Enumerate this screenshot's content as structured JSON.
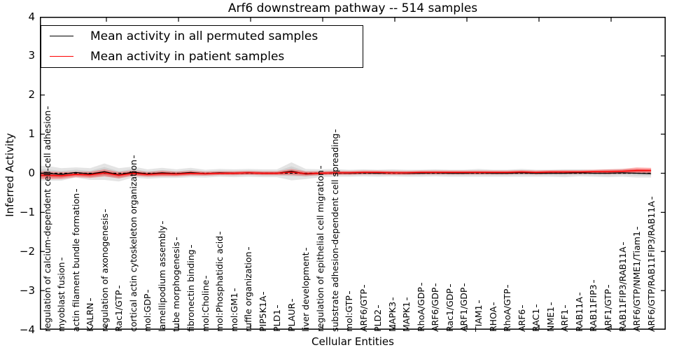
{
  "chart_data": {
    "type": "line",
    "title": "Arf6 downstream pathway -- 514 samples",
    "xlabel": "Cellular Entities",
    "ylabel": "Inferred Activity",
    "ylim": [
      -4,
      4
    ],
    "yticks": [
      4,
      3,
      2,
      1,
      0,
      -1,
      -2,
      -3,
      -4
    ],
    "ytick_labels": [
      "4",
      "3",
      "2",
      "1",
      "0",
      "−1",
      "−2",
      "−3",
      "−4"
    ],
    "grid": false,
    "zero_line_style": "dashed",
    "legend_position": "upper left",
    "categories": [
      "regulation of calcium-dependent cell-cell adhesion",
      "myoblast fusion",
      "actin filament bundle formation",
      "KALRN",
      "regulation of axonogenesis",
      "Rac1/GTP",
      "cortical actin cytoskeleton organization",
      "mol:GDP",
      "lamellipodium assembly",
      "tube morphogenesis",
      "fibronectin binding",
      "mol:Choline",
      "mol:Phosphatidic acid",
      "mol:GM1",
      "ruffle organization",
      "PIP5K1A",
      "PLD1",
      "PLAUR",
      "liver development",
      "regulation of epithelial cell migration",
      "substrate adhesion-dependent cell spreading",
      "mol:GTP",
      "ARF6/GTP",
      "PLD2",
      "MAPK3",
      "MAPK1",
      "RhoA/GDP",
      "ARF6/GDP",
      "Rac1/GDP",
      "ARF1/GDP",
      "TIAM1",
      "RHOA",
      "RhoA/GTP",
      "ARF6",
      "RAC1",
      "NME1",
      "ARF1",
      "RAB11A",
      "RAB11FIP3",
      "ARF1/GTP",
      "RAB11FIP3/RAB11A",
      "ARF6/GTP/NME1/Tiam1",
      "ARF6/GTP/RAB11FIP3/RAB11A"
    ],
    "series": [
      {
        "name": "Mean activity in all permuted samples",
        "color": "#000000",
        "band_color": "#555555",
        "values": [
          0.0,
          -0.03,
          0.02,
          -0.02,
          0.04,
          -0.04,
          0.03,
          -0.02,
          0.01,
          -0.01,
          0.02,
          -0.01,
          0.01,
          0.0,
          0.01,
          0.0,
          0.0,
          0.05,
          -0.02,
          0.0,
          0.01,
          0.0,
          0.01,
          0.0,
          0.01,
          0.0,
          0.0,
          0.01,
          0.0,
          0.0,
          0.01,
          0.0,
          0.0,
          0.01,
          0.0,
          0.0,
          0.0,
          0.01,
          0.0,
          0.0,
          0.01,
          0.0,
          -0.01
        ],
        "band_halfwidth": [
          0.19,
          0.16,
          0.13,
          0.15,
          0.21,
          0.17,
          0.14,
          0.12,
          0.13,
          0.11,
          0.12,
          0.1,
          0.1,
          0.1,
          0.1,
          0.1,
          0.1,
          0.23,
          0.13,
          0.1,
          0.1,
          0.09,
          0.09,
          0.09,
          0.09,
          0.09,
          0.09,
          0.09,
          0.09,
          0.09,
          0.1,
          0.09,
          0.09,
          0.1,
          0.09,
          0.09,
          0.1,
          0.09,
          0.09,
          0.1,
          0.1,
          0.11,
          0.1
        ]
      },
      {
        "name": "Mean activity in patient samples",
        "color": "#ff0000",
        "band_color": "#ff0000",
        "values": [
          -0.05,
          -0.06,
          -0.03,
          -0.04,
          0.01,
          -0.05,
          0.0,
          -0.03,
          -0.01,
          -0.02,
          0.0,
          -0.01,
          0.0,
          0.0,
          0.01,
          0.0,
          0.0,
          0.03,
          -0.01,
          0.0,
          0.01,
          0.01,
          0.02,
          0.02,
          0.01,
          0.01,
          0.02,
          0.02,
          0.02,
          0.02,
          0.02,
          0.02,
          0.02,
          0.03,
          0.02,
          0.03,
          0.03,
          0.03,
          0.04,
          0.04,
          0.05,
          0.07,
          0.07
        ],
        "band_halfwidth": [
          0.1,
          0.09,
          0.07,
          0.08,
          0.09,
          0.08,
          0.07,
          0.06,
          0.07,
          0.06,
          0.06,
          0.05,
          0.05,
          0.05,
          0.05,
          0.05,
          0.05,
          0.08,
          0.06,
          0.05,
          0.05,
          0.05,
          0.05,
          0.05,
          0.05,
          0.05,
          0.05,
          0.05,
          0.05,
          0.05,
          0.05,
          0.05,
          0.05,
          0.05,
          0.05,
          0.05,
          0.05,
          0.05,
          0.05,
          0.06,
          0.06,
          0.08,
          0.07
        ]
      }
    ]
  },
  "legend": {
    "entries": [
      {
        "label": "Mean activity in all permuted samples",
        "color": "#000000"
      },
      {
        "label": "Mean activity in patient samples",
        "color": "#ff0000"
      }
    ]
  }
}
